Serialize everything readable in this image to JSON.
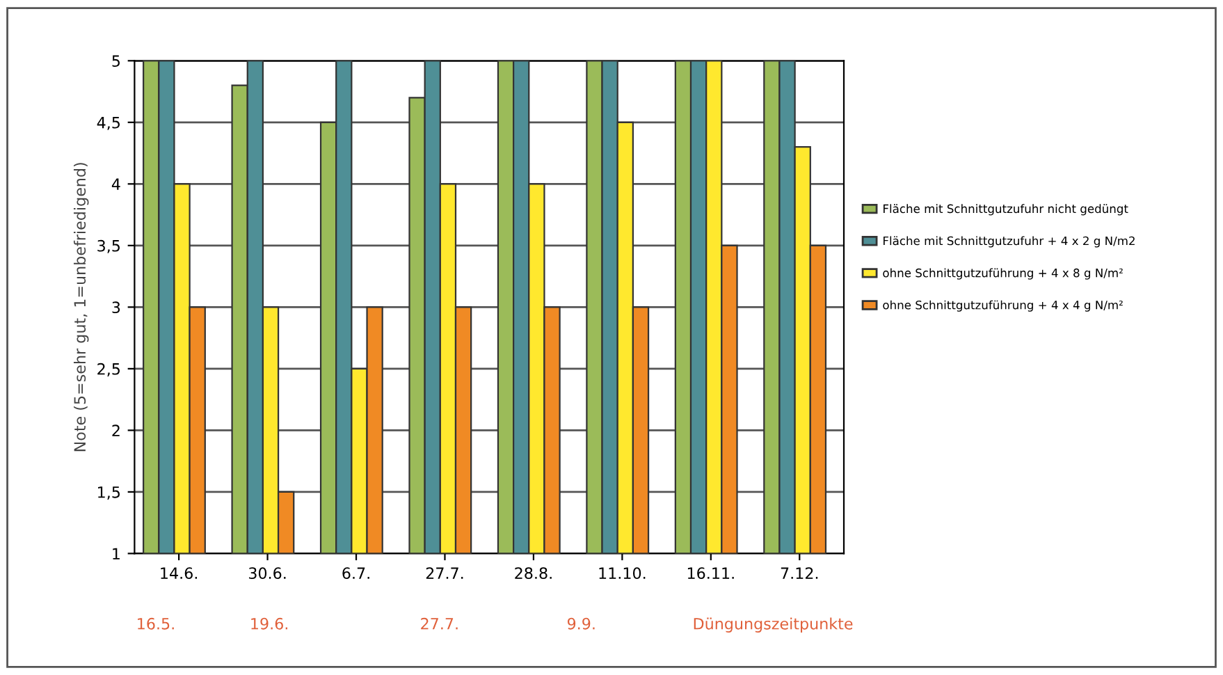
{
  "chart_data": {
    "type": "bar",
    "ylabel": "Note (5=sehr gut, 1=unbefriedigend)",
    "categories": [
      "14.6.",
      "30.6.",
      "6.7.",
      "27.7.",
      "28.8.",
      "11.10.",
      "16.11.",
      "7.12."
    ],
    "series": [
      {
        "name": "Fläche mit Schnittgutzufuhr nicht gedüngt",
        "color": "#9bbb59",
        "values": [
          5,
          4.8,
          4.5,
          4.7,
          5,
          5,
          5,
          5
        ]
      },
      {
        "name": "Fläche mit Schnittgutzufuhr + 4 x 2 g N/m2",
        "color": "#4f8f96",
        "values": [
          5,
          5,
          5,
          5,
          5,
          5,
          5,
          5
        ]
      },
      {
        "name": "ohne Schnittgutzuführung + 4 x 8 g N/m²",
        "color": "#ffe82e",
        "values": [
          4,
          3,
          2.5,
          4,
          4,
          4.5,
          5,
          4.3
        ]
      },
      {
        "name": "ohne Schnittgutzuführung + 4 x 4 g N/m²",
        "color": "#f08a24",
        "values": [
          3,
          1.5,
          3,
          3,
          3,
          3,
          3.5,
          3.5
        ]
      }
    ],
    "ylim": [
      1,
      5
    ],
    "yticks": [
      1,
      {
        "value": 1.5,
        "label": "1,5"
      },
      2,
      {
        "value": 2.5,
        "label": "2,5"
      },
      3,
      {
        "value": 3.5,
        "label": "3,5"
      },
      4,
      {
        "value": 4.5,
        "label": "4,5"
      },
      5
    ],
    "grid": "y",
    "legend": "right",
    "annotations": [
      "16.5.",
      "19.6.",
      "27.7.",
      "9.9.",
      "Düngungszeitpunkte"
    ]
  }
}
